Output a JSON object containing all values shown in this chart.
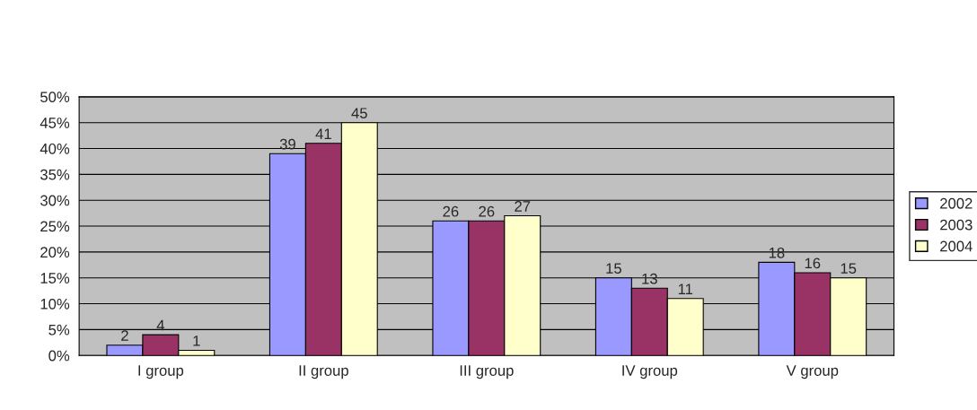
{
  "chart_data": {
    "type": "bar",
    "categories": [
      "I group",
      "II group",
      "III group",
      "IV group",
      "V group"
    ],
    "series": [
      {
        "name": "2002",
        "color": "#9999ff",
        "values": [
          2,
          39,
          26,
          15,
          18
        ]
      },
      {
        "name": "2003",
        "color": "#993366",
        "values": [
          4,
          41,
          26,
          13,
          16
        ]
      },
      {
        "name": "2004",
        "color": "#ffffcc",
        "values": [
          1,
          45,
          27,
          11,
          15
        ]
      }
    ],
    "ylim": [
      0,
      50
    ],
    "yticks": [
      {
        "value": 0,
        "label": "0%"
      },
      {
        "value": 5,
        "label": "5%"
      },
      {
        "value": 10,
        "label": "10%"
      },
      {
        "value": 15,
        "label": "15%"
      },
      {
        "value": 20,
        "label": "20%"
      },
      {
        "value": 25,
        "label": "25%"
      },
      {
        "value": 30,
        "label": "30%"
      },
      {
        "value": 35,
        "label": "35%"
      },
      {
        "value": 40,
        "label": "40%"
      },
      {
        "value": 45,
        "label": "45%"
      },
      {
        "value": 50,
        "label": "50%"
      }
    ],
    "grid": "y",
    "legend": "right",
    "data_labels": true
  }
}
